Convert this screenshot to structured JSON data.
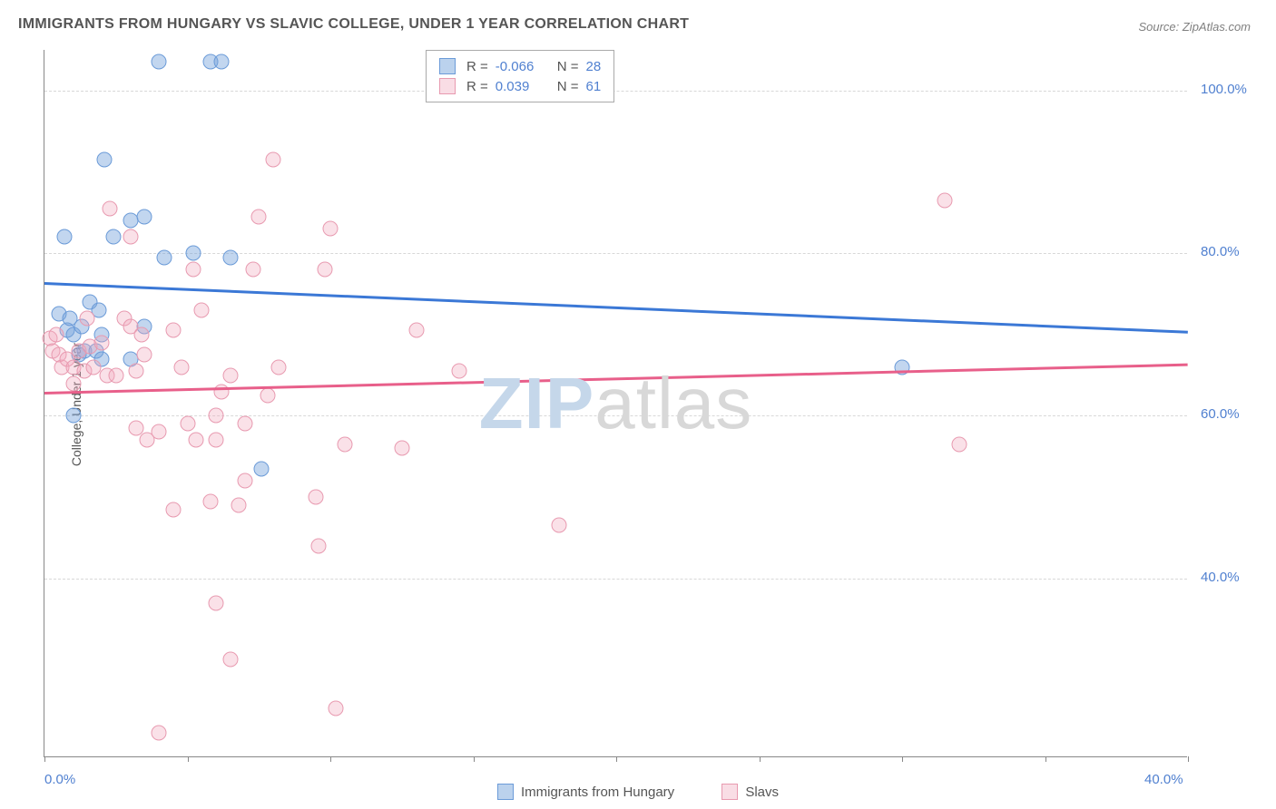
{
  "header": {
    "title": "IMMIGRANTS FROM HUNGARY VS SLAVIC COLLEGE, UNDER 1 YEAR CORRELATION CHART",
    "source_label": "Source: ZipAtlas.com"
  },
  "chart": {
    "type": "scatter",
    "y_axis_label": "College, Under 1 year",
    "xlim": [
      0,
      40
    ],
    "ylim": [
      18,
      105
    ],
    "x_ticks": [
      0,
      5,
      10,
      15,
      20,
      25,
      30,
      35,
      40
    ],
    "x_tick_labels_shown": {
      "0": "0.0%",
      "40": "40.0%"
    },
    "y_ticks": [
      40,
      60,
      80,
      100
    ],
    "y_tick_format": ".0%",
    "grid_color": "#d8d8d8",
    "background_color": "#ffffff",
    "axis_text_color": "#5080d0",
    "marker_size": 17,
    "series": [
      {
        "id": "hungary",
        "label": "Immigrants from Hungary",
        "color_fill": "rgba(120,165,220,0.45)",
        "color_stroke": "#6b9bd8",
        "line_color": "#3b78d6",
        "R": "-0.066",
        "N": "28",
        "trend": {
          "y_at_x0": 76.5,
          "y_at_x40": 70.5
        },
        "points": [
          [
            0.5,
            72.5
          ],
          [
            0.8,
            70.5
          ],
          [
            1.0,
            70.0
          ],
          [
            0.9,
            72.0
          ],
          [
            1.2,
            67.5
          ],
          [
            1.4,
            68.0
          ],
          [
            1.3,
            71.0
          ],
          [
            1.0,
            60.0
          ],
          [
            1.6,
            74.0
          ],
          [
            0.7,
            82.0
          ],
          [
            1.9,
            73.0
          ],
          [
            1.8,
            68.0
          ],
          [
            2.0,
            67.0
          ],
          [
            2.0,
            70.0
          ],
          [
            2.1,
            91.5
          ],
          [
            2.4,
            82.0
          ],
          [
            3.0,
            84.0
          ],
          [
            3.0,
            67.0
          ],
          [
            3.5,
            71.0
          ],
          [
            3.5,
            84.5
          ],
          [
            4.0,
            103.5
          ],
          [
            4.2,
            79.5
          ],
          [
            5.2,
            80.0
          ],
          [
            5.8,
            103.5
          ],
          [
            6.2,
            103.5
          ],
          [
            7.6,
            53.5
          ],
          [
            6.5,
            79.5
          ],
          [
            30.0,
            66.0
          ]
        ]
      },
      {
        "id": "slavs",
        "label": "Slavs",
        "color_fill": "rgba(240,170,190,0.35)",
        "color_stroke": "#e89ab0",
        "line_color": "#e85f8a",
        "R": "0.039",
        "N": "61",
        "trend": {
          "y_at_x0": 63.0,
          "y_at_x40": 66.5
        },
        "points": [
          [
            0.2,
            69.5
          ],
          [
            0.3,
            68.0
          ],
          [
            0.4,
            70.0
          ],
          [
            0.5,
            67.5
          ],
          [
            0.6,
            66.0
          ],
          [
            0.8,
            67.0
          ],
          [
            1.0,
            64.0
          ],
          [
            1.0,
            66.0
          ],
          [
            1.2,
            68.0
          ],
          [
            1.4,
            65.5
          ],
          [
            1.5,
            72.0
          ],
          [
            1.6,
            68.5
          ],
          [
            1.7,
            66.0
          ],
          [
            2.0,
            69.0
          ],
          [
            2.2,
            65.0
          ],
          [
            2.3,
            85.5
          ],
          [
            2.5,
            65.0
          ],
          [
            2.8,
            72.0
          ],
          [
            3.0,
            82.0
          ],
          [
            3.0,
            71.0
          ],
          [
            3.2,
            65.5
          ],
          [
            3.2,
            58.5
          ],
          [
            3.4,
            70.0
          ],
          [
            3.5,
            67.5
          ],
          [
            3.6,
            57.0
          ],
          [
            4.0,
            58.0
          ],
          [
            4.5,
            70.5
          ],
          [
            4.5,
            48.5
          ],
          [
            4.8,
            66.0
          ],
          [
            5.0,
            59.0
          ],
          [
            5.2,
            78.0
          ],
          [
            5.3,
            57.0
          ],
          [
            5.5,
            73.0
          ],
          [
            5.8,
            49.5
          ],
          [
            6.0,
            60.0
          ],
          [
            6.0,
            37.0
          ],
          [
            6.0,
            57.0
          ],
          [
            6.2,
            63.0
          ],
          [
            6.5,
            65.0
          ],
          [
            6.5,
            30.0
          ],
          [
            6.8,
            49.0
          ],
          [
            7.0,
            59.0
          ],
          [
            7.0,
            52.0
          ],
          [
            7.3,
            78.0
          ],
          [
            7.5,
            84.5
          ],
          [
            7.8,
            62.5
          ],
          [
            8.0,
            91.5
          ],
          [
            8.2,
            66.0
          ],
          [
            9.5,
            50.0
          ],
          [
            9.6,
            44.0
          ],
          [
            9.8,
            78.0
          ],
          [
            10.0,
            83.0
          ],
          [
            10.2,
            24.0
          ],
          [
            10.5,
            56.5
          ],
          [
            4.0,
            21.0
          ],
          [
            12.5,
            56.0
          ],
          [
            13.0,
            70.5
          ],
          [
            14.5,
            65.5
          ],
          [
            18.0,
            46.5
          ],
          [
            31.5,
            86.5
          ],
          [
            32.0,
            56.5
          ]
        ]
      }
    ]
  },
  "watermark": {
    "zip": "ZIP",
    "atlas": "atlas"
  },
  "bottom_legend": {
    "items": [
      {
        "swatch": "blue",
        "label": "Immigrants from Hungary"
      },
      {
        "swatch": "pink",
        "label": "Slavs"
      }
    ]
  }
}
